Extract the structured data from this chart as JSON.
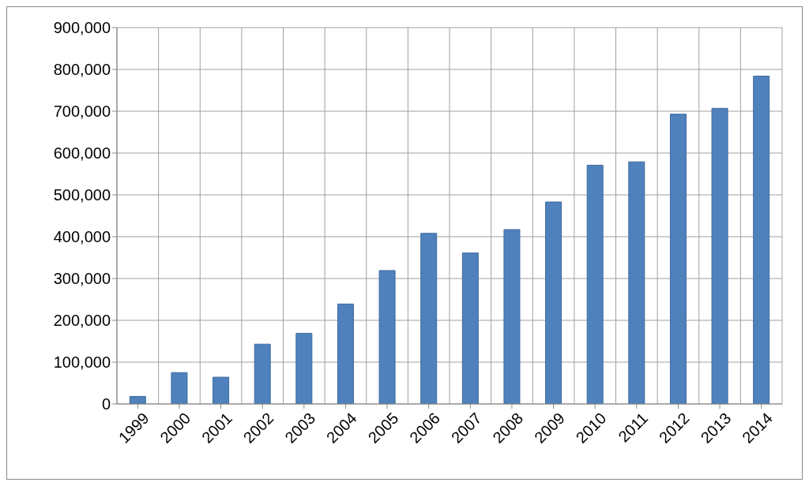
{
  "chart_data": {
    "type": "bar",
    "categories": [
      "1999",
      "2000",
      "2001",
      "2002",
      "2003",
      "2004",
      "2005",
      "2006",
      "2007",
      "2008",
      "2009",
      "2010",
      "2011",
      "2012",
      "2013",
      "2014"
    ],
    "values": [
      18000,
      75000,
      64000,
      143000,
      169000,
      239000,
      319000,
      408000,
      361000,
      417000,
      483000,
      571000,
      579000,
      693000,
      707000,
      784000
    ],
    "color": "#4f81bd",
    "ylim": [
      0,
      900000
    ],
    "yticks": [
      0,
      {
        "value": 100000,
        "label": "100,000"
      },
      {
        "value": 200000,
        "label": "200,000"
      },
      {
        "value": 300000,
        "label": "300,000"
      },
      {
        "value": 400000,
        "label": "400,000"
      },
      {
        "value": 500000,
        "label": "500,000"
      },
      {
        "value": 600000,
        "label": "600,000"
      },
      {
        "value": 700000,
        "label": "700,000"
      },
      {
        "value": 800000,
        "label": "800,000"
      },
      {
        "value": 900000,
        "label": "900,000"
      }
    ],
    "grid": true
  }
}
